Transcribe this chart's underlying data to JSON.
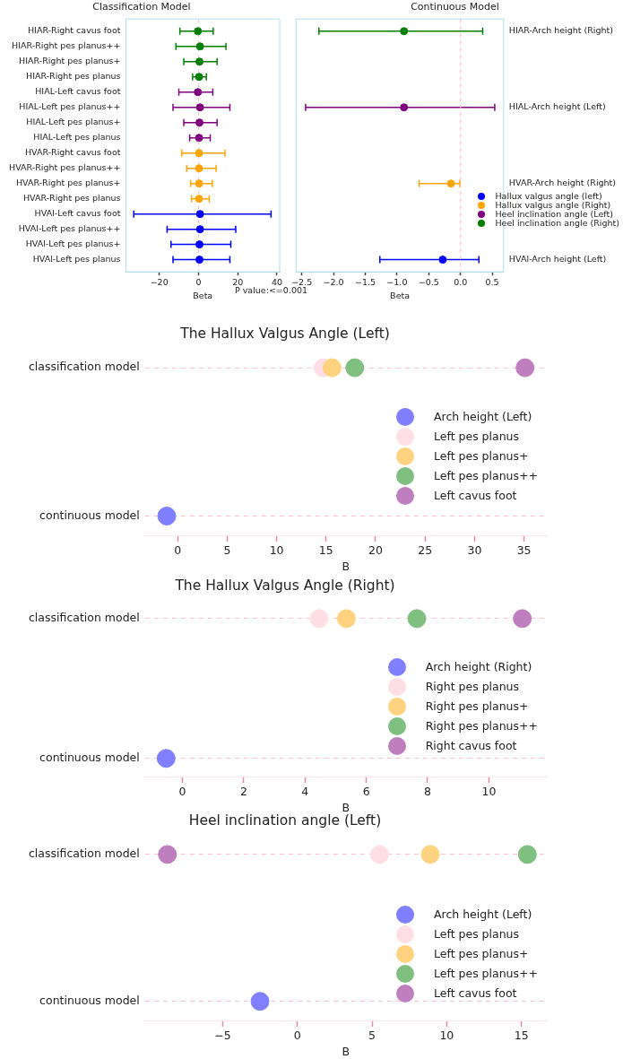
{
  "chart_data": [
    {
      "type": "scatter",
      "title": "Classification Model",
      "xlabel": "Beta",
      "orientation": "horizontal",
      "marker": "circle",
      "categories": [
        "HIAR-Right cavus foot",
        "HIAR-Right pes planus++",
        "HIAR-Right pes planus+",
        "HIAR-Right pes planus",
        "HIAL-Left cavus foot",
        "HIAL-Left pes planus++",
        "HIAL-Left pes planus+",
        "HIAL-Left pes planus",
        "HVAR-Right cavus foot",
        "HVAR-Right pes planus++",
        "HVAR-Right pes planus+",
        "HVAR-Right pes planus",
        "HVAl-Left cavus foot",
        "HVAl-Left pes planus++",
        "HVAl-Left pes planus+",
        "HVAl-Left pes planus"
      ],
      "xlim": [
        -37,
        41.4
      ],
      "xticks": [
        {
          "value": -20,
          "label": "−20"
        },
        0,
        20,
        40
      ],
      "ref_lines": [
        {
          "axis": "x",
          "value": 0,
          "color": "#ffb6c1",
          "line_style": "dashed"
        }
      ],
      "annotations": [
        "P value:<=0.001"
      ],
      "series": [
        {
          "color": "#0000ff",
          "values": [
            null,
            null,
            null,
            null,
            null,
            null,
            null,
            null,
            null,
            null,
            null,
            null,
            0.8,
            0.8,
            0.5,
            0.5
          ],
          "errors": [
            null,
            null,
            null,
            null,
            null,
            null,
            null,
            null,
            null,
            null,
            null,
            null,
            [
              -33,
              37
            ],
            [
              -16,
              19
            ],
            [
              -14,
              16.5
            ],
            [
              -13,
              16
            ]
          ]
        },
        {
          "color": "#ffa500",
          "values": [
            null,
            null,
            null,
            null,
            null,
            null,
            null,
            null,
            0.3,
            0.3,
            0.3,
            0.3,
            null,
            null,
            null,
            null
          ],
          "errors": [
            null,
            null,
            null,
            null,
            null,
            null,
            null,
            null,
            [
              -8.5,
              13.5
            ],
            [
              -6,
              9
            ],
            [
              -4,
              7
            ],
            [
              -3.5,
              5.5
            ],
            null,
            null,
            null,
            null
          ]
        },
        {
          "color": "#800080",
          "values": [
            null,
            null,
            null,
            null,
            -0.3,
            0.8,
            0.5,
            0.3,
            null,
            null,
            null,
            null,
            null,
            null,
            null,
            null
          ],
          "errors": [
            null,
            null,
            null,
            null,
            [
              -10,
              7.3
            ],
            [
              -13,
              16
            ],
            [
              -7.5,
              9.5
            ],
            [
              -4.5,
              6
            ],
            null,
            null,
            null,
            null,
            null,
            null,
            null,
            null
          ]
        },
        {
          "color": "#008000",
          "values": [
            -0.3,
            0.8,
            0.5,
            0.3,
            null,
            null,
            null,
            null,
            null,
            null,
            null,
            null,
            null,
            null,
            null,
            null
          ],
          "errors": [
            [
              -9.5,
              7.5
            ],
            [
              -11.5,
              14
            ],
            [
              -7.5,
              9.5
            ],
            [
              -3,
              4
            ],
            null,
            null,
            null,
            null,
            null,
            null,
            null,
            null,
            null,
            null,
            null,
            null
          ]
        }
      ]
    },
    {
      "type": "scatter",
      "title": "Continuous Model",
      "xlabel": "Beta",
      "orientation": "horizontal",
      "marker": "circle",
      "legend": "right",
      "categories": [
        "HIAR-Arch height (Right)",
        null,
        null,
        null,
        null,
        "HIAL-Arch height (Left)",
        null,
        null,
        null,
        null,
        "HVAR-Arch height (Right)",
        null,
        null,
        null,
        null,
        "HVAl-Arch height (Left)"
      ],
      "xlim": [
        -2.59,
        0.68
      ],
      "xticks": [
        {
          "value": -2.5,
          "label": "−2.5"
        },
        {
          "value": -2,
          "label": "−2.0"
        },
        {
          "value": -1.5,
          "label": "−1.5"
        },
        {
          "value": -1,
          "label": "−1.0"
        },
        {
          "value": -0.5,
          "label": "−0.5"
        },
        {
          "value": 0,
          "label": "0.0"
        },
        0.5
      ],
      "ref_lines": [
        {
          "axis": "x",
          "value": 0,
          "color": "#ffb6c1",
          "line_style": "dashed"
        }
      ],
      "series": [
        {
          "name": "Hallux valgus angle (left)",
          "color": "#0000ff",
          "values": [
            null,
            null,
            null,
            null,
            null,
            null,
            null,
            null,
            null,
            null,
            null,
            null,
            null,
            null,
            null,
            -0.28
          ],
          "errors": [
            null,
            null,
            null,
            null,
            null,
            null,
            null,
            null,
            null,
            null,
            null,
            null,
            null,
            null,
            null,
            [
              -1.27,
              0.29
            ]
          ]
        },
        {
          "name": "Hallux valgus angle (Right)",
          "color": "#ffa500",
          "values": [
            null,
            null,
            null,
            null,
            null,
            null,
            null,
            null,
            null,
            null,
            -0.15,
            null,
            null,
            null,
            null,
            null
          ],
          "errors": [
            null,
            null,
            null,
            null,
            null,
            null,
            null,
            null,
            null,
            null,
            [
              -0.65,
              -0.01
            ],
            null,
            null,
            null,
            null,
            null
          ]
        },
        {
          "name": "Heel inclination angle (Left)",
          "color": "#800080",
          "values": [
            null,
            null,
            null,
            null,
            null,
            -0.89,
            null,
            null,
            null,
            null,
            null,
            null,
            null,
            null,
            null,
            null
          ],
          "errors": [
            null,
            null,
            null,
            null,
            null,
            [
              -2.44,
              0.54
            ],
            null,
            null,
            null,
            null,
            null,
            null,
            null,
            null,
            null,
            null
          ]
        },
        {
          "name": "Heel inclination angle (Right)",
          "color": "#008000",
          "values": [
            -0.89,
            null,
            null,
            null,
            null,
            null,
            null,
            null,
            null,
            null,
            null,
            null,
            null,
            null,
            null,
            null
          ],
          "errors": [
            [
              -2.23,
              0.35
            ],
            null,
            null,
            null,
            null,
            null,
            null,
            null,
            null,
            null,
            null,
            null,
            null,
            null,
            null,
            null
          ]
        }
      ]
    },
    {
      "type": "scatter",
      "title": "The Hallux Valgus Angle (Left)",
      "xlabel": "B",
      "orientation": "horizontal",
      "marker": "circle",
      "legend": "right",
      "grid": "y",
      "categories": [
        "classification model",
        "continuous model"
      ],
      "xlim": [
        -3.3,
        37.3
      ],
      "xticks": [
        0,
        5,
        10,
        15,
        20,
        25,
        30,
        35
      ],
      "series": [
        {
          "name": "Arch height (Left)",
          "color": "#7f7fff",
          "values": [
            null,
            -1.1
          ]
        },
        {
          "name": "Left pes planus",
          "color": "#ffdfe5",
          "values": [
            14.7,
            null
          ]
        },
        {
          "name": "Left pes planus+",
          "color": "#ffd27f",
          "values": [
            15.6,
            null
          ]
        },
        {
          "name": "Left pes planus++",
          "color": "#7fbf7f",
          "values": [
            17.9,
            null
          ]
        },
        {
          "name": "Left cavus foot",
          "color": "#bf7fbf",
          "values": [
            35.1,
            null
          ]
        }
      ]
    },
    {
      "type": "scatter",
      "title": "The Hallux Valgus Angle (Right)",
      "xlabel": "B",
      "orientation": "horizontal",
      "marker": "circle",
      "legend": "right",
      "grid": "y",
      "categories": [
        "classification model",
        "continuous model"
      ],
      "xlim": [
        -1.22,
        11.89
      ],
      "xticks": [
        0,
        2,
        4,
        6,
        8,
        10
      ],
      "series": [
        {
          "name": "Arch height (Right)",
          "color": "#7f7fff",
          "values": [
            null,
            -0.53
          ]
        },
        {
          "name": "Right pes planus",
          "color": "#ffdfe5",
          "values": [
            4.46,
            null
          ]
        },
        {
          "name": "Right pes planus+",
          "color": "#ffd27f",
          "values": [
            5.35,
            null
          ]
        },
        {
          "name": "Right pes planus++",
          "color": "#7fbf7f",
          "values": [
            7.65,
            null
          ]
        },
        {
          "name": "Right cavus foot",
          "color": "#bf7fbf",
          "values": [
            11.09,
            null
          ]
        }
      ]
    },
    {
      "type": "scatter",
      "title": "Heel inclination angle (Left)",
      "xlabel": "B",
      "orientation": "horizontal",
      "marker": "circle",
      "legend": "right",
      "grid": "y",
      "categories": [
        "classification model",
        "continuous model"
      ],
      "xlim": [
        -10.2,
        16.7
      ],
      "xticks": [
        {
          "value": -5,
          "label": "−5"
        },
        0,
        5,
        10,
        15
      ],
      "series": [
        {
          "name": "Arch height (Left)",
          "color": "#7f7fff",
          "values": [
            null,
            -2.5
          ]
        },
        {
          "name": "Left pes planus",
          "color": "#ffdfe5",
          "values": [
            5.5,
            null
          ]
        },
        {
          "name": "Left pes planus+",
          "color": "#ffd27f",
          "values": [
            8.9,
            null
          ]
        },
        {
          "name": "Left pes planus++",
          "color": "#7fbf7f",
          "values": [
            15.4,
            null
          ]
        },
        {
          "name": "Left cavus foot",
          "color": "#bf7fbf",
          "values": [
            -8.7,
            null
          ]
        }
      ]
    }
  ]
}
